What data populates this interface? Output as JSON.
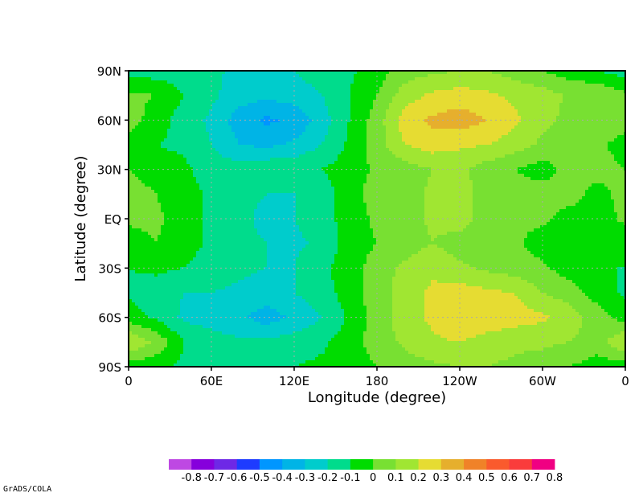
{
  "chart_data": {
    "type": "heatmap",
    "title": "",
    "xlabel": "Longitude   (degree)",
    "ylabel": "Latitude   (degree)",
    "x_ticks": [
      "0",
      "60E",
      "120E",
      "180",
      "120W",
      "60W",
      "0"
    ],
    "x_tick_values": [
      0,
      60,
      120,
      180,
      240,
      300,
      360
    ],
    "y_ticks": [
      "90S",
      "60S",
      "30S",
      "EQ",
      "30N",
      "60N",
      "90N"
    ],
    "y_tick_values": [
      -90,
      -60,
      -30,
      0,
      30,
      60,
      90
    ],
    "xlim": [
      0,
      360
    ],
    "ylim": [
      -90,
      90
    ],
    "grid": true,
    "colorbar": {
      "labels": [
        "-0.8",
        "-0.7",
        "-0.6",
        "-0.5",
        "-0.4",
        "-0.3",
        "-0.2",
        "-0.1",
        "0",
        "0.1",
        "0.2",
        "0.3",
        "0.4",
        "0.5",
        "0.6",
        "0.7",
        "0.8"
      ],
      "colors": [
        "#be48e3",
        "#8600dc",
        "#6e28e6",
        "#1e3cff",
        "#0096ff",
        "#00b4e6",
        "#00cccc",
        "#00dc8c",
        "#00dc00",
        "#78e032",
        "#a0e632",
        "#e6dc32",
        "#e6af2d",
        "#f08228",
        "#fa5a2d",
        "#fa3c3c",
        "#f00082"
      ]
    },
    "fields": {
      "lon": [
        0,
        20,
        40,
        60,
        80,
        100,
        120,
        140,
        160,
        180,
        200,
        220,
        240,
        260,
        280,
        300,
        320,
        340,
        360
      ],
      "lat": [
        90,
        75,
        60,
        45,
        30,
        15,
        0,
        -15,
        -30,
        -45,
        -60,
        -75,
        -90
      ],
      "values": [
        [
          -0.15,
          -0.15,
          -0.15,
          -0.18,
          -0.22,
          -0.22,
          -0.2,
          -0.15,
          -0.12,
          -0.05,
          0.05,
          0.08,
          0.1,
          0.1,
          0.05,
          0.0,
          -0.05,
          -0.1,
          -0.15
        ],
        [
          0.02,
          0.0,
          -0.1,
          -0.18,
          -0.25,
          -0.28,
          -0.25,
          -0.2,
          -0.1,
          0.0,
          0.15,
          0.22,
          0.25,
          0.22,
          0.18,
          0.15,
          0.08,
          0.1,
          0.02
        ],
        [
          0.05,
          -0.05,
          -0.15,
          -0.22,
          -0.35,
          -0.42,
          -0.38,
          -0.25,
          -0.1,
          0.05,
          0.25,
          0.32,
          0.35,
          0.3,
          0.22,
          0.12,
          0.08,
          0.1,
          0.05
        ],
        [
          -0.05,
          -0.1,
          -0.12,
          -0.2,
          -0.3,
          -0.32,
          -0.28,
          -0.2,
          -0.08,
          0.05,
          0.2,
          0.25,
          0.22,
          0.2,
          0.15,
          0.08,
          0.05,
          0.02,
          -0.05
        ],
        [
          0.0,
          -0.05,
          -0.08,
          -0.15,
          -0.15,
          -0.12,
          -0.12,
          -0.1,
          -0.05,
          0.02,
          0.05,
          0.1,
          0.12,
          0.05,
          0.0,
          -0.05,
          0.05,
          0.05,
          0.0
        ],
        [
          0.05,
          0.0,
          -0.05,
          -0.12,
          -0.18,
          -0.2,
          -0.2,
          -0.15,
          -0.05,
          0.05,
          0.05,
          0.12,
          0.15,
          0.05,
          0.05,
          0.05,
          0.05,
          -0.05,
          0.05
        ],
        [
          0.02,
          0.02,
          -0.05,
          -0.12,
          -0.18,
          -0.22,
          -0.2,
          -0.15,
          -0.05,
          0.02,
          0.05,
          0.12,
          0.15,
          0.05,
          0.02,
          0.02,
          -0.05,
          -0.05,
          0.02
        ],
        [
          -0.05,
          0.0,
          -0.05,
          -0.12,
          -0.18,
          -0.2,
          -0.22,
          -0.18,
          -0.05,
          0.0,
          0.05,
          0.1,
          0.05,
          0.02,
          0.02,
          -0.05,
          -0.08,
          -0.05,
          -0.05
        ],
        [
          -0.1,
          -0.08,
          -0.1,
          -0.15,
          -0.18,
          -0.2,
          -0.2,
          -0.12,
          -0.05,
          0.05,
          0.12,
          0.18,
          0.12,
          0.08,
          0.05,
          0.02,
          -0.05,
          -0.1,
          -0.1
        ],
        [
          -0.12,
          -0.15,
          -0.2,
          -0.2,
          -0.22,
          -0.25,
          -0.2,
          -0.15,
          -0.05,
          0.05,
          0.15,
          0.22,
          0.25,
          0.22,
          0.2,
          0.1,
          0.05,
          -0.05,
          -0.12
        ],
        [
          -0.05,
          -0.12,
          -0.22,
          -0.25,
          -0.28,
          -0.35,
          -0.28,
          -0.2,
          -0.08,
          0.05,
          0.15,
          0.22,
          0.3,
          0.28,
          0.25,
          0.22,
          0.15,
          0.05,
          -0.05
        ],
        [
          0.2,
          0.08,
          -0.1,
          -0.15,
          -0.18,
          -0.18,
          -0.15,
          -0.12,
          -0.05,
          0.05,
          0.12,
          0.18,
          0.2,
          0.15,
          0.12,
          0.12,
          0.1,
          0.05,
          0.2
        ],
        [
          -0.05,
          -0.08,
          -0.12,
          -0.12,
          -0.12,
          -0.12,
          -0.1,
          -0.08,
          -0.05,
          0.0,
          0.05,
          0.08,
          0.1,
          0.1,
          0.08,
          0.05,
          0.0,
          -0.05,
          -0.05
        ]
      ]
    }
  },
  "footer": {
    "credit": "GrADS/COLA"
  }
}
